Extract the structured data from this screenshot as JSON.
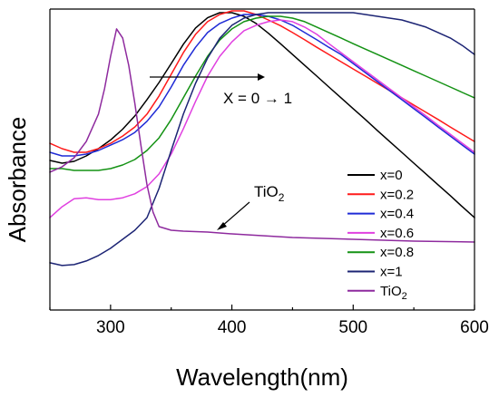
{
  "chart_data": {
    "type": "line",
    "xlabel": "Wavelength(nm)",
    "ylabel": "Absorbance",
    "xlim": [
      250,
      600
    ],
    "ylim": [
      0,
      1
    ],
    "x_ticks": [
      "300",
      "400",
      "500",
      "600"
    ],
    "y_ticks": [],
    "grid": false,
    "legend_position": "right",
    "annotations": {
      "trend": "X = 0 → 1",
      "tio2_label": "TiO",
      "tio2_subscript": "2"
    },
    "series": [
      {
        "name": "x=0",
        "color": "#000000",
        "x": [
          250,
          260,
          270,
          280,
          290,
          300,
          310,
          320,
          330,
          340,
          350,
          360,
          370,
          380,
          390,
          400,
          410,
          420,
          430,
          440,
          450,
          460,
          470,
          480,
          490,
          500,
          510,
          520,
          530,
          540,
          550,
          560,
          570,
          580,
          590,
          600
        ],
        "y": [
          0.497,
          0.488,
          0.494,
          0.512,
          0.536,
          0.565,
          0.601,
          0.645,
          0.699,
          0.756,
          0.819,
          0.883,
          0.937,
          0.971,
          0.988,
          0.988,
          0.976,
          0.952,
          0.92,
          0.885,
          0.849,
          0.813,
          0.777,
          0.741,
          0.705,
          0.669,
          0.633,
          0.596,
          0.56,
          0.524,
          0.488,
          0.452,
          0.416,
          0.38,
          0.343,
          0.307
        ]
      },
      {
        "name": "x=0.2",
        "legend_name": "x=0.2",
        "color": "#ff1a1a",
        "x": [
          250,
          260,
          270,
          280,
          290,
          300,
          310,
          320,
          330,
          340,
          350,
          360,
          370,
          380,
          390,
          400,
          410,
          420,
          430,
          440,
          450,
          460,
          470,
          480,
          490,
          500,
          510,
          520,
          530,
          540,
          550,
          560,
          570,
          580,
          590,
          600
        ],
        "y": [
          0.554,
          0.536,
          0.524,
          0.524,
          0.536,
          0.554,
          0.578,
          0.608,
          0.651,
          0.711,
          0.783,
          0.855,
          0.916,
          0.958,
          0.982,
          0.994,
          0.994,
          0.982,
          0.964,
          0.945,
          0.922,
          0.898,
          0.873,
          0.849,
          0.825,
          0.801,
          0.777,
          0.753,
          0.729,
          0.705,
          0.681,
          0.657,
          0.633,
          0.608,
          0.584,
          0.56
        ]
      },
      {
        "name": "x=0.4",
        "color": "#1f2bd6",
        "x": [
          250,
          260,
          270,
          280,
          290,
          300,
          310,
          320,
          330,
          340,
          350,
          360,
          370,
          380,
          390,
          400,
          410,
          420,
          430,
          440,
          450,
          460,
          470,
          480,
          490,
          500,
          510,
          520,
          530,
          540,
          550,
          560,
          570,
          580,
          590,
          600
        ],
        "y": [
          0.524,
          0.512,
          0.512,
          0.518,
          0.53,
          0.548,
          0.566,
          0.59,
          0.627,
          0.675,
          0.741,
          0.813,
          0.873,
          0.922,
          0.952,
          0.97,
          0.982,
          0.982,
          0.976,
          0.964,
          0.946,
          0.922,
          0.898,
          0.873,
          0.849,
          0.819,
          0.789,
          0.759,
          0.729,
          0.699,
          0.669,
          0.639,
          0.608,
          0.578,
          0.548,
          0.518
        ]
      },
      {
        "name": "x=0.6",
        "color": "#e040e0",
        "x": [
          250,
          260,
          270,
          280,
          290,
          300,
          310,
          320,
          330,
          340,
          350,
          360,
          370,
          380,
          390,
          400,
          410,
          420,
          430,
          440,
          450,
          460,
          470,
          480,
          490,
          500,
          510,
          520,
          530,
          540,
          550,
          560,
          570,
          580,
          590,
          600
        ],
        "y": [
          0.307,
          0.343,
          0.37,
          0.373,
          0.367,
          0.367,
          0.373,
          0.386,
          0.41,
          0.452,
          0.518,
          0.602,
          0.693,
          0.777,
          0.843,
          0.891,
          0.928,
          0.946,
          0.958,
          0.964,
          0.958,
          0.94,
          0.916,
          0.885,
          0.855,
          0.825,
          0.795,
          0.765,
          0.735,
          0.705,
          0.675,
          0.645,
          0.614,
          0.584,
          0.554,
          0.524
        ]
      },
      {
        "name": "x=0.8",
        "color": "#149214",
        "x": [
          250,
          260,
          270,
          280,
          290,
          300,
          310,
          320,
          330,
          340,
          350,
          360,
          370,
          380,
          390,
          400,
          410,
          420,
          430,
          440,
          450,
          460,
          470,
          480,
          490,
          500,
          510,
          520,
          530,
          540,
          550,
          560,
          570,
          580,
          590,
          600
        ],
        "y": [
          0.47,
          0.47,
          0.464,
          0.464,
          0.464,
          0.47,
          0.482,
          0.5,
          0.53,
          0.572,
          0.633,
          0.705,
          0.777,
          0.843,
          0.897,
          0.934,
          0.958,
          0.97,
          0.976,
          0.976,
          0.97,
          0.958,
          0.94,
          0.922,
          0.904,
          0.885,
          0.867,
          0.849,
          0.831,
          0.813,
          0.795,
          0.777,
          0.759,
          0.741,
          0.723,
          0.705
        ]
      },
      {
        "name": "x=1",
        "color": "#1c2474",
        "x": [
          250,
          260,
          270,
          280,
          290,
          300,
          310,
          320,
          330,
          340,
          350,
          360,
          370,
          380,
          390,
          400,
          410,
          420,
          430,
          440,
          450,
          460,
          470,
          480,
          490,
          500,
          510,
          520,
          530,
          540,
          550,
          560,
          570,
          580,
          590,
          600
        ],
        "y": [
          0.157,
          0.148,
          0.151,
          0.163,
          0.181,
          0.205,
          0.235,
          0.265,
          0.307,
          0.404,
          0.53,
          0.651,
          0.753,
          0.837,
          0.903,
          0.946,
          0.97,
          0.982,
          0.988,
          0.988,
          0.988,
          0.988,
          0.988,
          0.988,
          0.988,
          0.988,
          0.982,
          0.976,
          0.97,
          0.964,
          0.952,
          0.94,
          0.922,
          0.904,
          0.879,
          0.849
        ]
      },
      {
        "name": "TiO2",
        "color": "#8e2a9e",
        "x": [
          250,
          260,
          270,
          280,
          290,
          295,
          300,
          305,
          310,
          315,
          320,
          325,
          330,
          335,
          340,
          350,
          360,
          380,
          400,
          450,
          500,
          550,
          600
        ],
        "y": [
          0.458,
          0.476,
          0.506,
          0.56,
          0.651,
          0.735,
          0.843,
          0.934,
          0.904,
          0.813,
          0.687,
          0.548,
          0.416,
          0.325,
          0.277,
          0.265,
          0.262,
          0.259,
          0.253,
          0.241,
          0.235,
          0.229,
          0.226
        ]
      }
    ]
  }
}
